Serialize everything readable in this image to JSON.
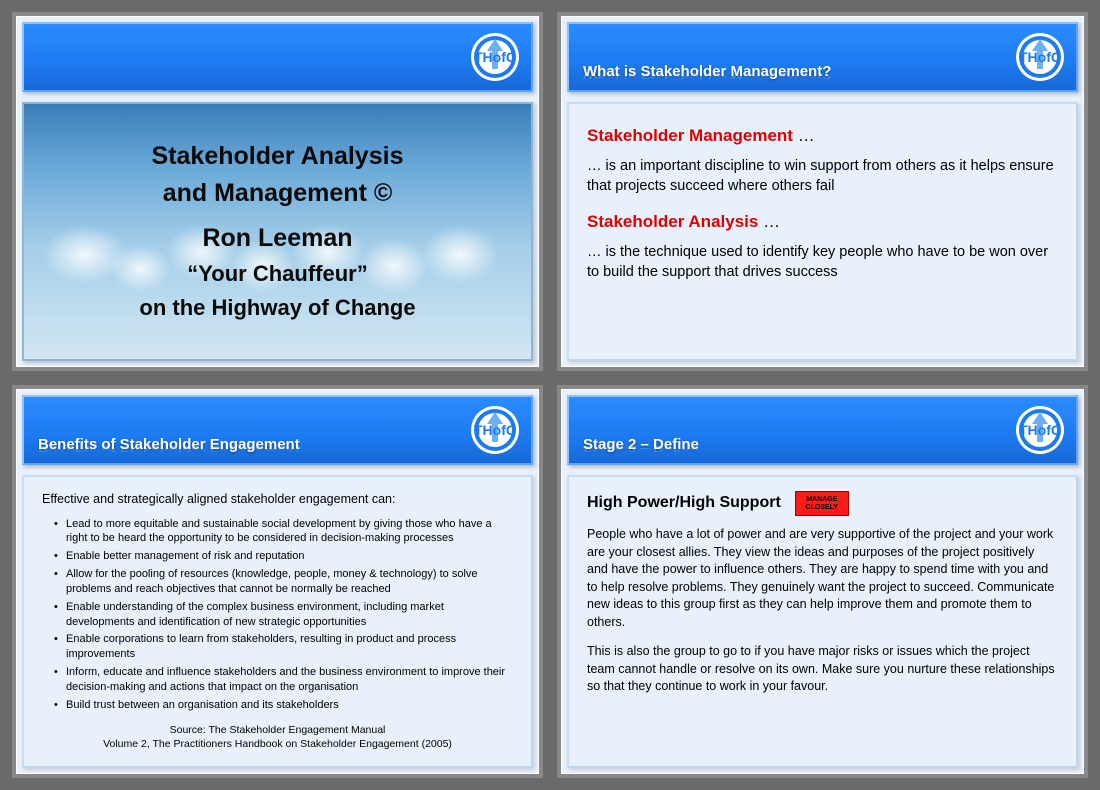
{
  "brand": {
    "logo_text": "THofC",
    "logo_bg": "#ffffff",
    "logo_ring": "#1d7af0",
    "arrow_color": "#3a8df0"
  },
  "colors": {
    "page_bg": "#6a6a6a",
    "slide_bg": "#e8f1fb",
    "header_grad_top": "#2a8cff",
    "header_grad_bottom": "#1768d8",
    "red": "#e00000",
    "badge_bg": "#ff1a1a"
  },
  "slide1": {
    "title_line1": "Stakeholder Analysis",
    "title_line2": "and Management ©",
    "author": "Ron Leeman",
    "tagline1": "“Your Chauffeur”",
    "tagline2": "on the Highway of Change"
  },
  "slide2": {
    "header": "What is Stakeholder Management?",
    "h1": "Stakeholder Management",
    "p1": "… is an important discipline to win support from others as it helps ensure that projects succeed where others fail",
    "h2": "Stakeholder Analysis",
    "p2": "… is the technique used to identify key people who have to be won over to build the support that drives success"
  },
  "slide3": {
    "header": "Benefits of Stakeholder Engagement",
    "intro": "Effective and strategically aligned stakeholder engagement can:",
    "bullets": [
      "Lead to more equitable and sustainable social development by giving those who have a right to be heard the opportunity to be considered in decision-making processes",
      "Enable better management of risk and reputation",
      "Allow for the pooling of resources (knowledge, people, money & technology) to solve problems and reach objectives that cannot be normally be reached",
      "Enable understanding of the complex business environment, including market developments and identification of new strategic opportunities",
      "Enable corporations to learn from stakeholders, resulting in product and process improvements",
      "Inform, educate and influence stakeholders and the business environment to improve their decision-making and actions that impact on the organisation",
      "Build trust between an organisation and its stakeholders"
    ],
    "source_line1": "Source: The Stakeholder Engagement Manual",
    "source_line2": "Volume 2, The Practitioners Handbook on Stakeholder Engagement (2005)"
  },
  "slide4": {
    "header": "Stage 2 – Define",
    "title": "High Power/High Support",
    "badge_l1": "MANAGE",
    "badge_l2": "CLOSELY",
    "p1": "People who have a lot of power and are very supportive of the project and your work are your closest allies. They view the ideas and purposes of the project positively and have the power to influence others. They are happy to spend time with you and to help resolve problems. They genuinely want the project to succeed. Communicate new ideas to this group first as they can help improve them and promote them to others.",
    "p2": "This is also the group to go to if you have major risks or issues which the project team cannot handle or resolve on its own. Make sure you nurture these relationships so that they continue to work in your favour."
  }
}
